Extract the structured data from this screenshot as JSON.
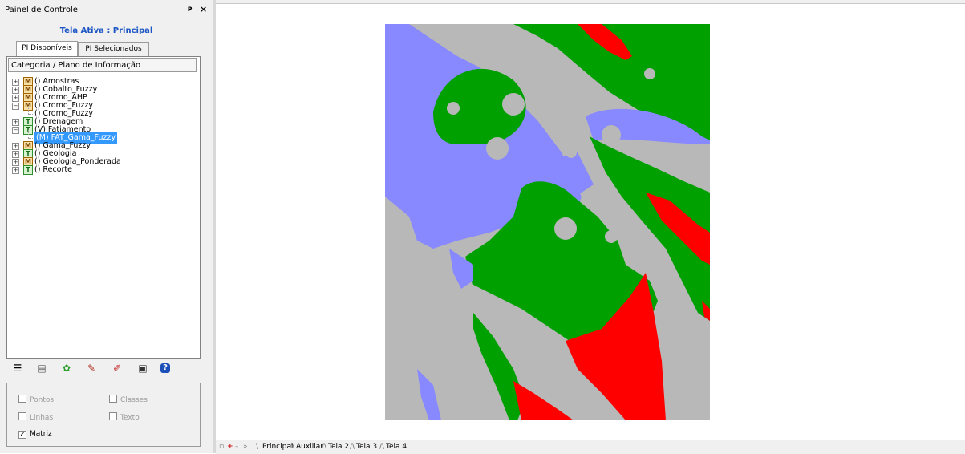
{
  "panel": {
    "title": "Painel de Controle",
    "pin_glyph": "Ę",
    "close_glyph": "×",
    "active_screen": "Tela Ativa : Principal",
    "tabs": [
      "PI Disponíveis",
      "PI Selecionados"
    ],
    "tree_header": "Categoria / Plano de Informação",
    "tree": [
      {
        "badge": "M",
        "label": "() Amostras"
      },
      {
        "badge": "M",
        "label": "() Cobalto_Fuzzy"
      },
      {
        "badge": "M",
        "label": "() Cromo_AHP"
      },
      {
        "badge": "M",
        "label": "() Cromo_Fuzzy"
      },
      {
        "badge": "",
        "label": "() Cromo_Fuzzy"
      },
      {
        "badge": "T",
        "label": "() Drenagem"
      },
      {
        "badge": "T",
        "label": "(V) Fatiamento"
      },
      {
        "badge": "",
        "label": "(M) FAT_Gama_Fuzzy"
      },
      {
        "badge": "M",
        "label": "() Gama_Fuzzy"
      },
      {
        "badge": "T",
        "label": "() Geologia"
      },
      {
        "badge": "M",
        "label": "() Geologia_Ponderada"
      },
      {
        "badge": "T",
        "label": "() Recorte"
      }
    ],
    "options": {
      "pontos": "Pontos",
      "classes": "Classes",
      "linhas": "Linhas",
      "texto": "Texto",
      "matriz": "Matriz",
      "matriz_checked": "✓"
    }
  },
  "bottom_tabs": [
    "Principal",
    "Auxiliar",
    "Tela 2",
    "Tela 3",
    "Tela 4"
  ],
  "colors": {
    "gray": "#b8b8b8",
    "blue": "#8888ff",
    "green": "#00a000",
    "red": "#ff0000",
    "accent": "#1d56c4",
    "selection": "#3399ff"
  }
}
